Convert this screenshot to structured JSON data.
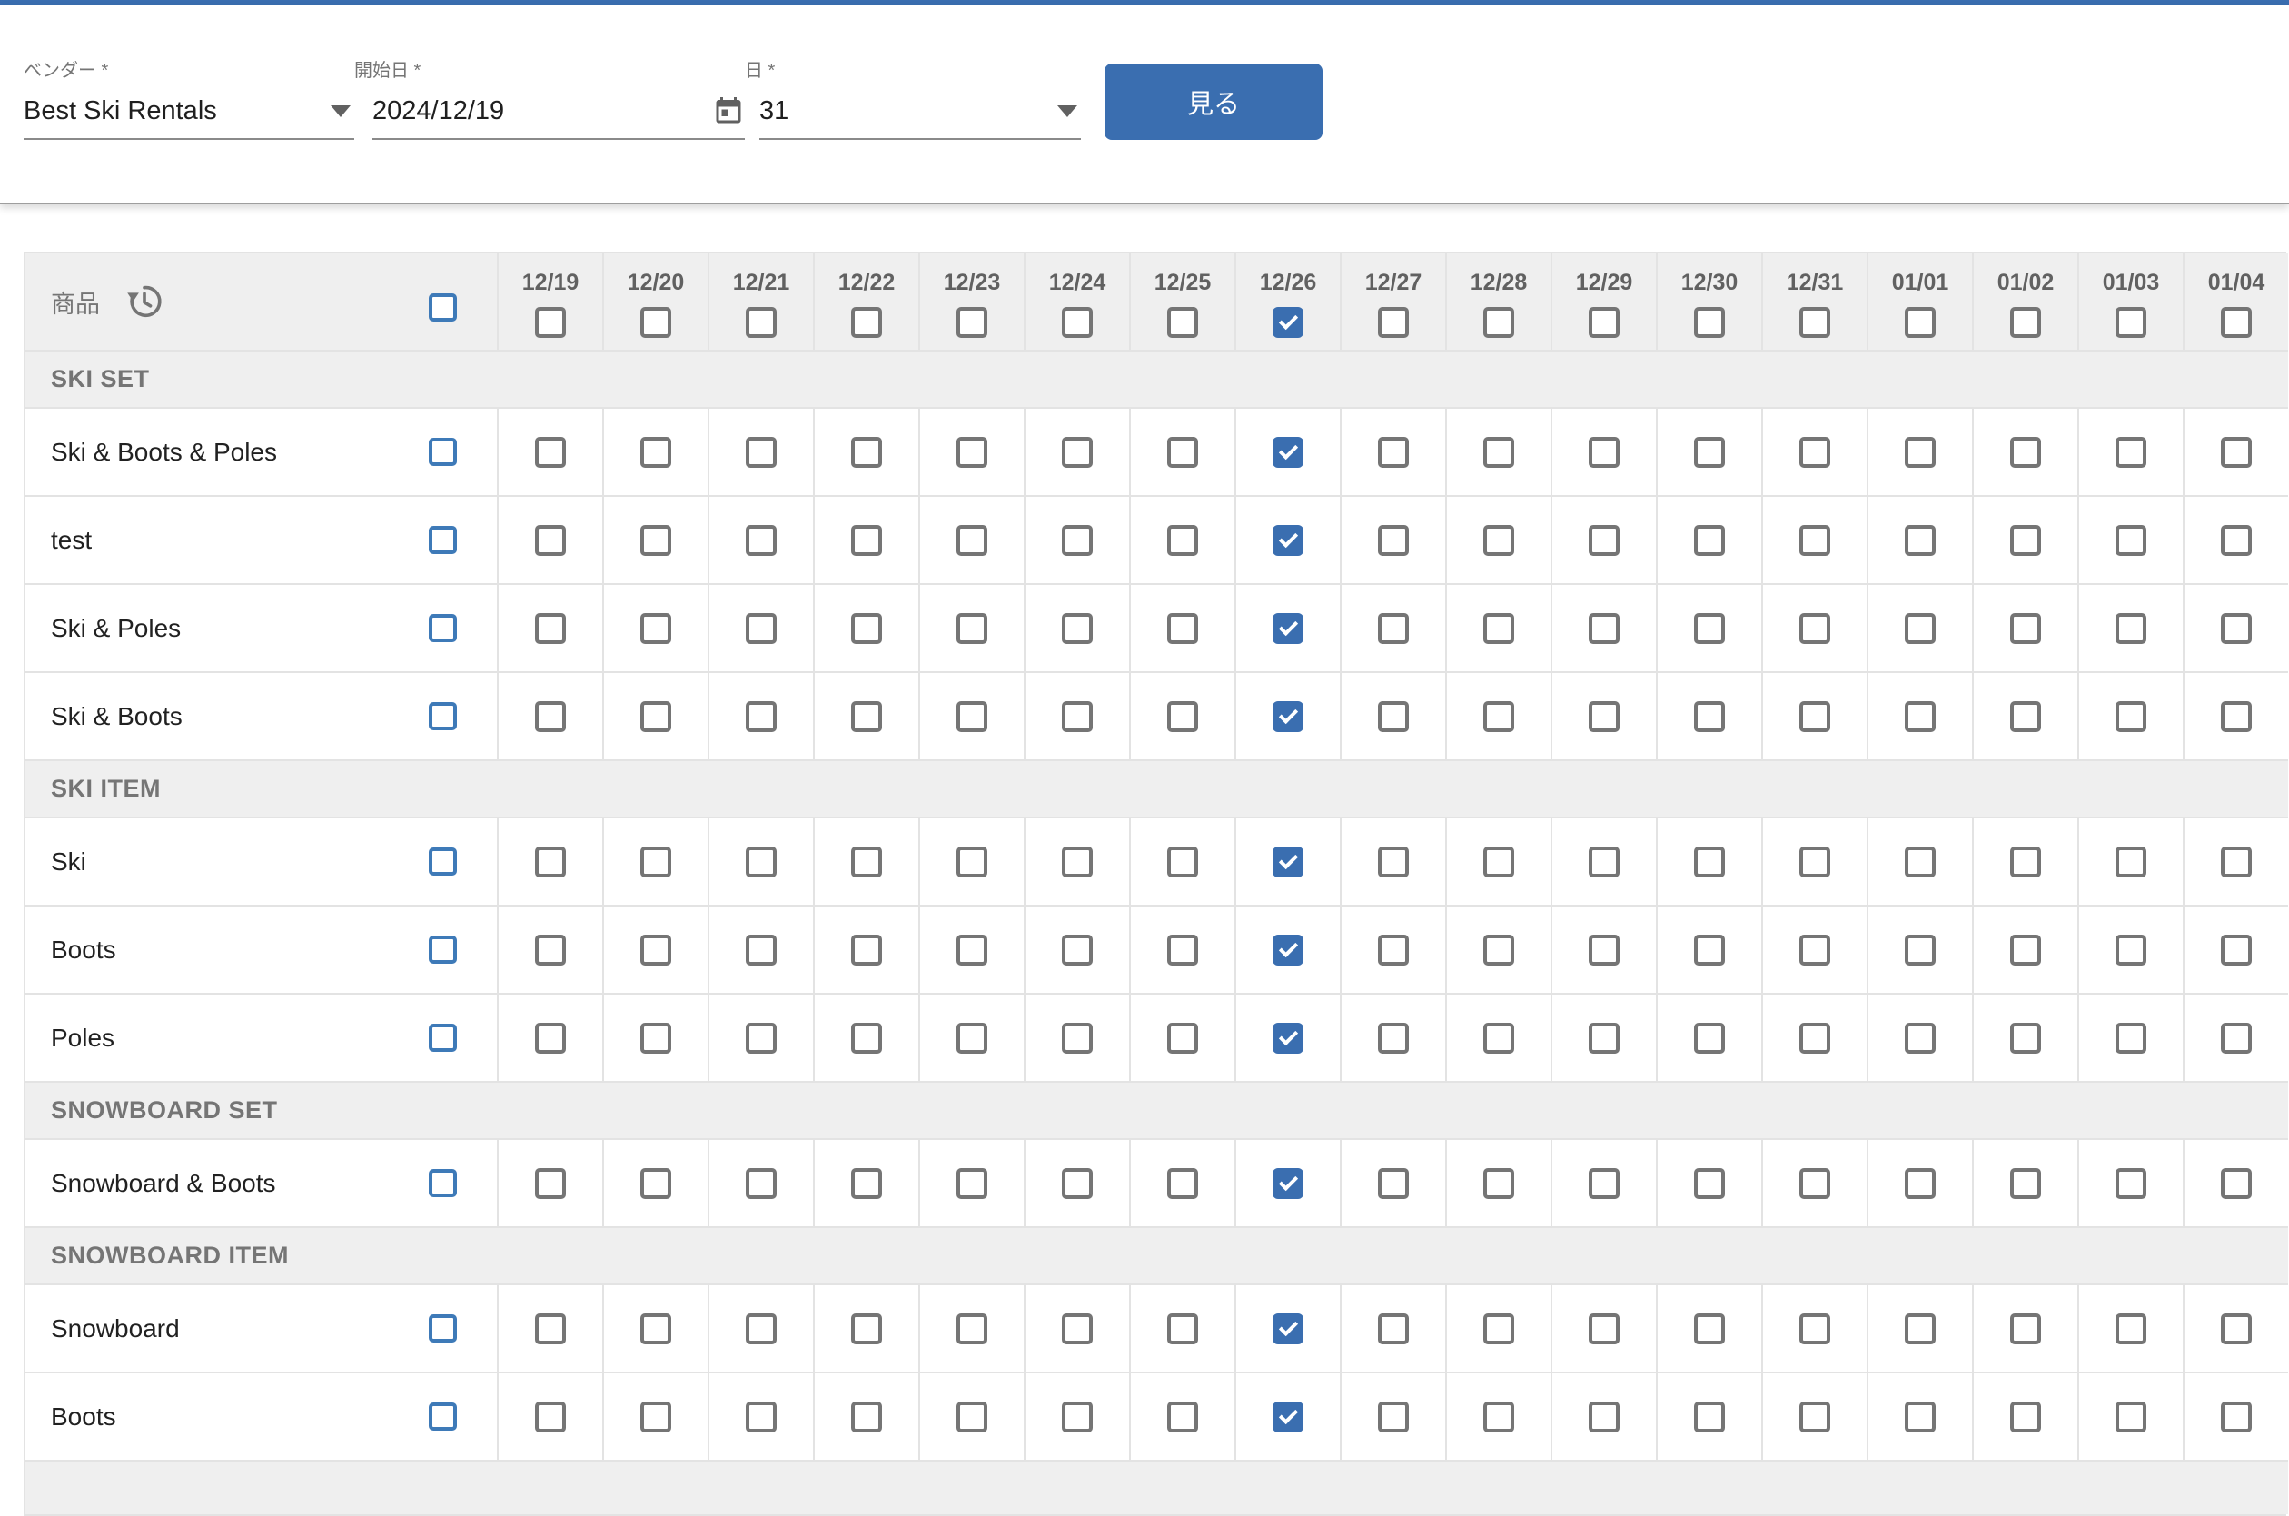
{
  "form": {
    "vendor": {
      "label": "ベンダー *",
      "value": "Best Ski Rentals"
    },
    "start_date": {
      "label": "開始日 *",
      "value": "2024/12/19"
    },
    "days": {
      "label": "日 *",
      "value": "31"
    },
    "submit_label": "見る"
  },
  "table": {
    "product_column_header": "商品",
    "columns": [
      "12/19",
      "12/20",
      "12/21",
      "12/22",
      "12/23",
      "12/24",
      "12/25",
      "12/26",
      "12/27",
      "12/28",
      "12/29",
      "12/30",
      "12/31",
      "01/01",
      "01/02",
      "01/03",
      "01/04"
    ],
    "checked_column": "12/26",
    "checked_column_index": 7,
    "select_all_checked": false,
    "row_checkboxes_checked": false,
    "sections": [
      {
        "title": "SKI SET",
        "rows": [
          "Ski & Boots & Poles",
          "test",
          "Ski & Poles",
          "Ski & Boots"
        ]
      },
      {
        "title": "SKI ITEM",
        "rows": [
          "Ski",
          "Boots",
          "Poles"
        ]
      },
      {
        "title": "SNOWBOARD SET",
        "rows": [
          "Snowboard & Boots"
        ]
      },
      {
        "title": "SNOWBOARD ITEM",
        "rows": [
          "Snowboard",
          "Boots"
        ]
      }
    ]
  },
  "colors": {
    "accent_blue": "#3a6eb0",
    "checkbox_border_blue": "#3e7ab8",
    "checkbox_border_gray": "#757575",
    "header_background": "#efefef",
    "grid_border": "#e3e3e3"
  }
}
